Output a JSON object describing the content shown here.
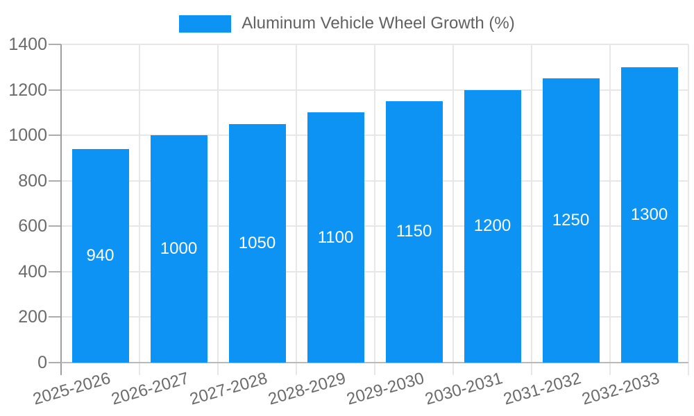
{
  "legend": {
    "label": "Aluminum Vehicle Wheel Growth (%)"
  },
  "chart_data": {
    "type": "bar",
    "title": "Aluminum Vehicle Wheel Growth (%)",
    "categories": [
      "2025-2026",
      "2026-2027",
      "2027-2028",
      "2028-2029",
      "2029-2030",
      "2030-2031",
      "2031-2032",
      "2032-2033"
    ],
    "values": [
      940,
      1000,
      1050,
      1100,
      1150,
      1200,
      1250,
      1300
    ],
    "value_labels": [
      "940",
      "1000",
      "1050",
      "1100",
      "1150",
      "1200",
      "1250",
      "1300"
    ],
    "xlabel": "",
    "ylabel": "",
    "ylim": [
      0,
      1400
    ],
    "yticks": [
      0,
      200,
      400,
      600,
      800,
      1000,
      1200,
      1400
    ],
    "grid": true,
    "legend_position": "top",
    "bar_color": "#0d93f3",
    "bar_label_color": "#ffffff",
    "axis_text_color": "#6b6b6b"
  }
}
